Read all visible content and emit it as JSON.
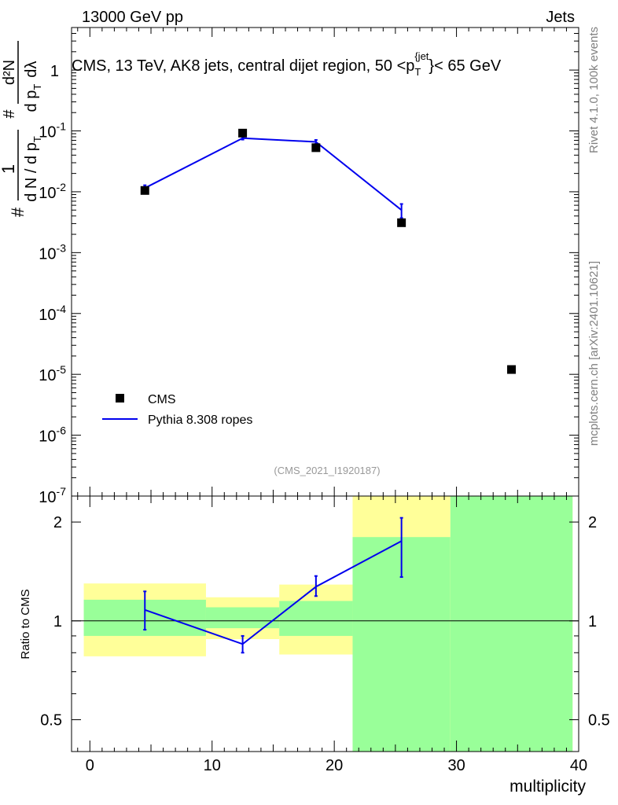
{
  "header": {
    "left": "13000 GeV pp",
    "right": "Jets"
  },
  "side_text": {
    "top": "Rivet 4.1.0,  100k events",
    "bottom": "mcplots.cern.ch [arXiv:2401.10621]"
  },
  "colors": {
    "data_marker": "#000000",
    "mc_line": "#0000ee",
    "band_inner": "#99ff99",
    "band_outer": "#ffff99"
  },
  "chart_data": [
    {
      "type": "scatter",
      "title": "CMS, 13 TeV, AK8 jets, central dijet region, 50 <p_T^{jet}< 65 GeV",
      "title_parts": {
        "main": "CMS, 13 TeV, AK8 jets, central dijet region, 50 <p",
        "sub": "T",
        "sup": "{jet",
        "tail": "}< 65 GeV"
      },
      "ylabel_parts": {
        "left_frac_num": "1",
        "left_frac_den": "d N / d p",
        "left_sub": "T",
        "hash": "#",
        "right_frac_num": "d²N",
        "right_frac_den": "d p",
        "right_sub": "T",
        "dlambda": "dλ"
      },
      "yscale": "log",
      "ylim": [
        1e-07,
        5
      ],
      "xlim": [
        -1.5,
        40
      ],
      "ytick_labels": [
        {
          "base": "10",
          "exp": "-7",
          "value": 1e-07
        },
        {
          "base": "10",
          "exp": "-6",
          "value": 1e-06
        },
        {
          "base": "10",
          "exp": "-5",
          "value": 1e-05
        },
        {
          "base": "10",
          "exp": "-4",
          "value": 0.0001
        },
        {
          "base": "10",
          "exp": "-3",
          "value": 0.001
        },
        {
          "base": "10",
          "exp": "-2",
          "value": 0.01
        },
        {
          "base": "10",
          "exp": "-1",
          "value": 0.1
        },
        {
          "base": "1",
          "exp": "",
          "value": 1
        }
      ],
      "watermark": "(CMS_2021_I1920187)",
      "series": [
        {
          "name": "CMS",
          "kind": "markers",
          "x": [
            4.5,
            12.5,
            18.5,
            25.5,
            34.5
          ],
          "y": [
            0.0105,
            0.092,
            0.053,
            0.0031,
            1.2e-05
          ]
        },
        {
          "name": "Pythia 8.308 ropes",
          "kind": "line",
          "x": [
            4.5,
            12.5,
            18.5,
            25.5
          ],
          "y": [
            0.0115,
            0.076,
            0.066,
            0.005
          ],
          "err_lo": [
            0.0103,
            0.072,
            0.061,
            0.0037
          ],
          "err_hi": [
            0.0128,
            0.08,
            0.071,
            0.0063
          ]
        }
      ],
      "legend": [
        {
          "label": "CMS",
          "kind": "marker"
        },
        {
          "label": "Pythia 8.308 ropes",
          "kind": "line"
        }
      ],
      "legend_position": "bottom-left"
    },
    {
      "type": "line",
      "ylabel": "Ratio to CMS",
      "xlabel": "multiplicity",
      "yscale": "log",
      "ylim": [
        0.4,
        2.4
      ],
      "xlim": [
        -1.5,
        40
      ],
      "ytick_labels": [
        {
          "label": "0.5",
          "value": 0.5
        },
        {
          "label": "1",
          "value": 1
        },
        {
          "label": "2",
          "value": 2
        }
      ],
      "xtick_labels": [
        {
          "label": "0",
          "value": 0
        },
        {
          "label": "10",
          "value": 10
        },
        {
          "label": "20",
          "value": 20
        },
        {
          "label": "30",
          "value": 30
        },
        {
          "label": "40",
          "value": 40
        }
      ],
      "reference_line": 1,
      "bands": [
        {
          "x0": -0.5,
          "x1": 9.5,
          "outer": [
            0.78,
            1.3
          ],
          "inner": [
            0.9,
            1.16
          ]
        },
        {
          "x0": 9.5,
          "x1": 15.5,
          "outer": [
            0.88,
            1.18
          ],
          "inner": [
            0.95,
            1.1
          ]
        },
        {
          "x0": 15.5,
          "x1": 21.5,
          "outer": [
            0.79,
            1.29
          ],
          "inner": [
            0.9,
            1.15
          ]
        },
        {
          "x0": 21.5,
          "x1": 29.5,
          "outer": [
            0.4,
            2.4
          ],
          "inner": [
            0.4,
            1.8
          ]
        },
        {
          "x0": 29.5,
          "x1": 39.5,
          "outer": [
            0.4,
            2.4
          ],
          "inner": [
            0.4,
            2.4
          ]
        }
      ],
      "series": [
        {
          "name": "Pythia 8.308 ropes",
          "x": [
            4.5,
            12.5,
            18.5,
            25.5
          ],
          "y": [
            1.08,
            0.85,
            1.27,
            1.75
          ],
          "err_lo": [
            0.94,
            0.8,
            1.19,
            1.36
          ],
          "err_hi": [
            1.23,
            0.9,
            1.37,
            2.06
          ]
        }
      ]
    }
  ]
}
